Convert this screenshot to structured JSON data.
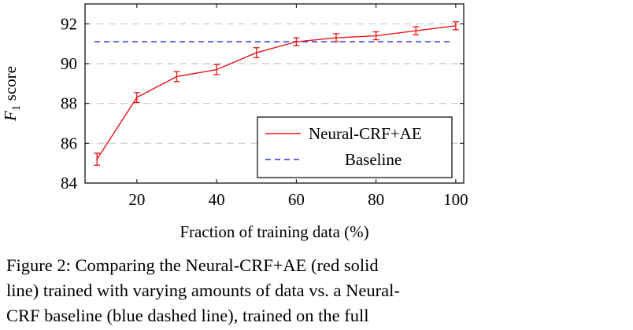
{
  "chart_data": {
    "type": "line",
    "xlabel": "Fraction of training data (%)",
    "ylabel_main": "F",
    "ylabel_sub": "1",
    "ylabel_rest": "score",
    "xlim": [
      7,
      102
    ],
    "ylim": [
      84,
      93
    ],
    "x_ticks": [
      20,
      40,
      60,
      80,
      100
    ],
    "y_ticks": [
      84,
      86,
      88,
      90,
      92
    ],
    "grid": "horizontal dashed",
    "legend_position": "bottom-right",
    "series": [
      {
        "name": "Neural-CRF+AE",
        "style": "solid",
        "color": "#e8141b",
        "x": [
          10,
          20,
          30,
          40,
          50,
          60,
          70,
          80,
          90,
          100
        ],
        "y": [
          85.2,
          88.3,
          89.35,
          89.7,
          90.55,
          91.1,
          91.3,
          91.4,
          91.65,
          91.9
        ],
        "error": [
          0.3,
          0.25,
          0.25,
          0.25,
          0.25,
          0.2,
          0.2,
          0.2,
          0.2,
          0.2
        ]
      },
      {
        "name": "Baseline",
        "style": "dashed",
        "color": "#2e35e8",
        "x": [
          7,
          102
        ],
        "y": [
          91.1,
          91.1
        ]
      }
    ]
  },
  "caption": {
    "lines": [
      "Figure 2:  Comparing the Neural-CRF+AE (red solid",
      "line) trained with varying amounts of data vs. a Neural-",
      "CRF  baseline  (blue  dashed  line),  trained  on  the  full"
    ]
  }
}
